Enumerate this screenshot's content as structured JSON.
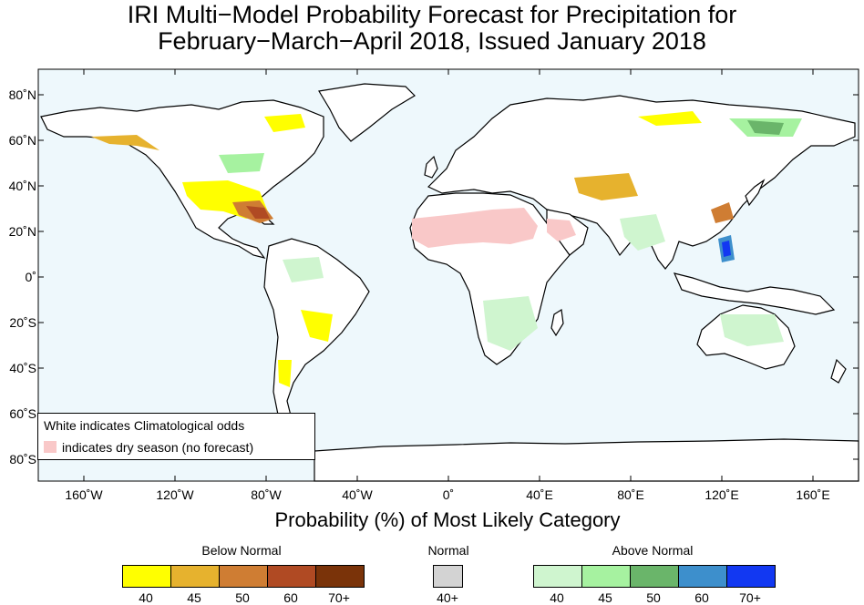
{
  "title": {
    "line1": "IRI Multi−Model Probability Forecast for Precipitation for",
    "line2": "February−March−April 2018, Issued January 2018"
  },
  "map": {
    "ocean_color": "#eef8fc",
    "lon_ticks": [
      "160˚W",
      "120˚W",
      "80˚W",
      "40˚W",
      "0˚",
      "40˚E",
      "80˚E",
      "120˚E",
      "160˚E"
    ],
    "lat_ticks": [
      "80˚N",
      "60˚N",
      "40˚N",
      "20˚N",
      "0˚",
      "20˚S",
      "40˚S",
      "60˚S",
      "80˚S"
    ]
  },
  "legend": {
    "line1": "White indicates Climatological odds",
    "line2": "indicates dry season (no forecast)",
    "dry_color": "#f9c8c8"
  },
  "colorbar": {
    "title": "Probability (%) of Most Likely Category",
    "below": {
      "label": "Below Normal",
      "colors": [
        "#ffff00",
        "#e6b22e",
        "#cf7d33",
        "#b04a23",
        "#7a3309"
      ],
      "ticks": [
        "40",
        "45",
        "50",
        "60",
        "70+"
      ]
    },
    "normal": {
      "label": "Normal",
      "color": "#d3d3d3",
      "tick": "40+"
    },
    "above": {
      "label": "Above Normal",
      "colors": [
        "#cff5cf",
        "#a6f2a0",
        "#6ab56a",
        "#3d8fcc",
        "#1238f2"
      ],
      "ticks": [
        "40",
        "45",
        "50",
        "60",
        "70+"
      ]
    }
  }
}
